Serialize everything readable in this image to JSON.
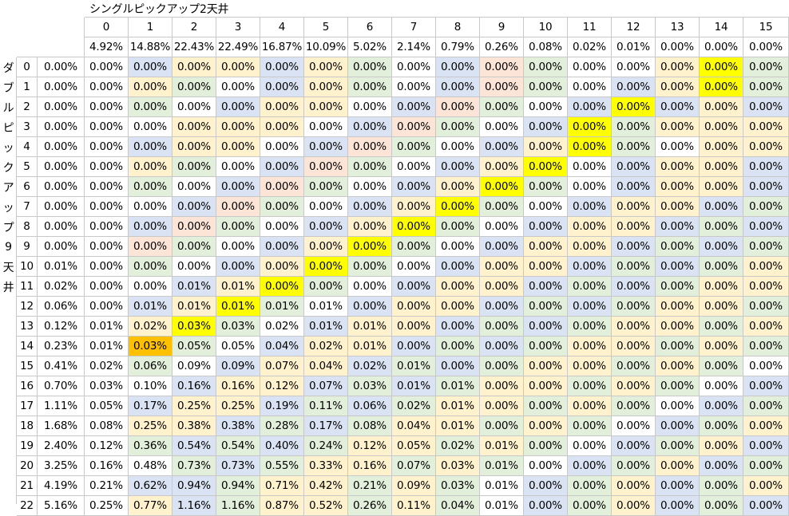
{
  "sheet": {
    "title": "シングルピックアップ2天井",
    "vertical_label": [
      "ダ",
      "ブ",
      "ル",
      "ピ",
      "ッ",
      "ク",
      "ア",
      "ッ",
      "プ",
      "9",
      "天",
      "井"
    ],
    "col_headers": [
      "0",
      "1",
      "2",
      "3",
      "4",
      "5",
      "6",
      "7",
      "8",
      "9",
      "10",
      "11",
      "12",
      "13",
      "14",
      "15"
    ],
    "col_probs": [
      "4.92%",
      "14.88%",
      "22.43%",
      "22.49%",
      "16.87%",
      "10.09%",
      "5.02%",
      "2.14%",
      "0.79%",
      "0.26%",
      "0.08%",
      "0.02%",
      "0.01%",
      "0.00%",
      "0.00%",
      "0.00%"
    ],
    "row_headers": [
      "0",
      "1",
      "2",
      "3",
      "4",
      "5",
      "6",
      "7",
      "8",
      "9",
      "10",
      "11",
      "12",
      "13",
      "14",
      "15",
      "16",
      "17",
      "18",
      "19",
      "20",
      "21",
      "22"
    ],
    "row_probs": [
      "0.00%",
      "0.00%",
      "0.00%",
      "0.00%",
      "0.00%",
      "0.00%",
      "0.00%",
      "0.00%",
      "0.00%",
      "0.00%",
      "0.01%",
      "0.02%",
      "0.06%",
      "0.12%",
      "0.23%",
      "0.41%",
      "0.70%",
      "1.11%",
      "1.68%",
      "2.40%",
      "3.25%",
      "4.19%",
      "5.16%"
    ],
    "values": [
      [
        "0.00%",
        "0.00%",
        "0.00%",
        "0.00%",
        "0.00%",
        "0.00%",
        "0.00%",
        "0.00%",
        "0.00%",
        "0.00%",
        "0.00%",
        "0.00%",
        "0.00%",
        "0.00%",
        "0.00%",
        "0.00%"
      ],
      [
        "0.00%",
        "0.00%",
        "0.00%",
        "0.00%",
        "0.00%",
        "0.00%",
        "0.00%",
        "0.00%",
        "0.00%",
        "0.00%",
        "0.00%",
        "0.00%",
        "0.00%",
        "0.00%",
        "0.00%",
        "0.00%"
      ],
      [
        "0.00%",
        "0.00%",
        "0.00%",
        "0.00%",
        "0.00%",
        "0.00%",
        "0.00%",
        "0.00%",
        "0.00%",
        "0.00%",
        "0.00%",
        "0.00%",
        "0.00%",
        "0.00%",
        "0.00%",
        "0.00%"
      ],
      [
        "0.00%",
        "0.00%",
        "0.00%",
        "0.00%",
        "0.00%",
        "0.00%",
        "0.00%",
        "0.00%",
        "0.00%",
        "0.00%",
        "0.00%",
        "0.00%",
        "0.00%",
        "0.00%",
        "0.00%",
        "0.00%"
      ],
      [
        "0.00%",
        "0.00%",
        "0.00%",
        "0.00%",
        "0.00%",
        "0.00%",
        "0.00%",
        "0.00%",
        "0.00%",
        "0.00%",
        "0.00%",
        "0.00%",
        "0.00%",
        "0.00%",
        "0.00%",
        "0.00%"
      ],
      [
        "0.00%",
        "0.00%",
        "0.00%",
        "0.00%",
        "0.00%",
        "0.00%",
        "0.00%",
        "0.00%",
        "0.00%",
        "0.00%",
        "0.00%",
        "0.00%",
        "0.00%",
        "0.00%",
        "0.00%",
        "0.00%"
      ],
      [
        "0.00%",
        "0.00%",
        "0.00%",
        "0.00%",
        "0.00%",
        "0.00%",
        "0.00%",
        "0.00%",
        "0.00%",
        "0.00%",
        "0.00%",
        "0.00%",
        "0.00%",
        "0.00%",
        "0.00%",
        "0.00%"
      ],
      [
        "0.00%",
        "0.00%",
        "0.00%",
        "0.00%",
        "0.00%",
        "0.00%",
        "0.00%",
        "0.00%",
        "0.00%",
        "0.00%",
        "0.00%",
        "0.00%",
        "0.00%",
        "0.00%",
        "0.00%",
        "0.00%"
      ],
      [
        "0.00%",
        "0.00%",
        "0.00%",
        "0.00%",
        "0.00%",
        "0.00%",
        "0.00%",
        "0.00%",
        "0.00%",
        "0.00%",
        "0.00%",
        "0.00%",
        "0.00%",
        "0.00%",
        "0.00%",
        "0.00%"
      ],
      [
        "0.00%",
        "0.00%",
        "0.00%",
        "0.00%",
        "0.00%",
        "0.00%",
        "0.00%",
        "0.00%",
        "0.00%",
        "0.00%",
        "0.00%",
        "0.00%",
        "0.00%",
        "0.00%",
        "0.00%",
        "0.00%"
      ],
      [
        "0.00%",
        "0.00%",
        "0.00%",
        "0.00%",
        "0.00%",
        "0.00%",
        "0.00%",
        "0.00%",
        "0.00%",
        "0.00%",
        "0.00%",
        "0.00%",
        "0.00%",
        "0.00%",
        "0.00%",
        "0.00%"
      ],
      [
        "0.00%",
        "0.00%",
        "0.01%",
        "0.01%",
        "0.00%",
        "0.00%",
        "0.00%",
        "0.00%",
        "0.00%",
        "0.00%",
        "0.00%",
        "0.00%",
        "0.00%",
        "0.00%",
        "0.00%",
        "0.00%"
      ],
      [
        "0.00%",
        "0.01%",
        "0.01%",
        "0.01%",
        "0.01%",
        "0.01%",
        "0.00%",
        "0.00%",
        "0.00%",
        "0.00%",
        "0.00%",
        "0.00%",
        "0.00%",
        "0.00%",
        "0.00%",
        "0.00%"
      ],
      [
        "0.01%",
        "0.02%",
        "0.03%",
        "0.03%",
        "0.02%",
        "0.01%",
        "0.01%",
        "0.00%",
        "0.00%",
        "0.00%",
        "0.00%",
        "0.00%",
        "0.00%",
        "0.00%",
        "0.00%",
        "0.00%"
      ],
      [
        "0.01%",
        "0.03%",
        "0.05%",
        "0.05%",
        "0.04%",
        "0.02%",
        "0.01%",
        "0.00%",
        "0.00%",
        "0.00%",
        "0.00%",
        "0.00%",
        "0.00%",
        "0.00%",
        "0.00%",
        "0.00%"
      ],
      [
        "0.02%",
        "0.06%",
        "0.09%",
        "0.09%",
        "0.07%",
        "0.04%",
        "0.02%",
        "0.01%",
        "0.00%",
        "0.00%",
        "0.00%",
        "0.00%",
        "0.00%",
        "0.00%",
        "0.00%",
        "0.00%"
      ],
      [
        "0.03%",
        "0.10%",
        "0.16%",
        "0.16%",
        "0.12%",
        "0.07%",
        "0.03%",
        "0.01%",
        "0.01%",
        "0.00%",
        "0.00%",
        "0.00%",
        "0.00%",
        "0.00%",
        "0.00%",
        "0.00%"
      ],
      [
        "0.05%",
        "0.17%",
        "0.25%",
        "0.25%",
        "0.19%",
        "0.11%",
        "0.06%",
        "0.02%",
        "0.01%",
        "0.00%",
        "0.00%",
        "0.00%",
        "0.00%",
        "0.00%",
        "0.00%",
        "0.00%"
      ],
      [
        "0.08%",
        "0.25%",
        "0.38%",
        "0.38%",
        "0.28%",
        "0.17%",
        "0.08%",
        "0.04%",
        "0.01%",
        "0.00%",
        "0.00%",
        "0.00%",
        "0.00%",
        "0.00%",
        "0.00%",
        "0.00%"
      ],
      [
        "0.12%",
        "0.36%",
        "0.54%",
        "0.54%",
        "0.40%",
        "0.24%",
        "0.12%",
        "0.05%",
        "0.02%",
        "0.01%",
        "0.00%",
        "0.00%",
        "0.00%",
        "0.00%",
        "0.00%",
        "0.00%"
      ],
      [
        "0.16%",
        "0.48%",
        "0.73%",
        "0.73%",
        "0.55%",
        "0.33%",
        "0.16%",
        "0.07%",
        "0.03%",
        "0.01%",
        "0.00%",
        "0.00%",
        "0.00%",
        "0.00%",
        "0.00%",
        "0.00%"
      ],
      [
        "0.21%",
        "0.62%",
        "0.94%",
        "0.94%",
        "0.71%",
        "0.42%",
        "0.21%",
        "0.09%",
        "0.03%",
        "0.01%",
        "0.00%",
        "0.00%",
        "0.00%",
        "0.00%",
        "0.00%",
        "0.00%"
      ],
      [
        "0.25%",
        "0.77%",
        "1.16%",
        "1.16%",
        "0.87%",
        "0.52%",
        "0.26%",
        "0.11%",
        "0.04%",
        "0.01%",
        "0.00%",
        "0.00%",
        "0.00%",
        "0.00%",
        "0.00%",
        "0.00%"
      ]
    ],
    "palette": {
      "w": "#ffffff",
      "b": "#dae3f3",
      "y": "#fff2cc",
      "g": "#e2efda",
      "p": "#fce4d6",
      "Y": "#ffff00",
      "O": "#ffc000"
    },
    "fills": [
      "wbyybygwbpgwwyYg",
      "wygwbygwbpgwbyYg",
      "wgwbyywbpgwbYbyb",
      "wwyyywbpgwbYgyyy",
      "wbyywbpgwbyYgwyy",
      "wygwbpgwbyYwbyyb",
      "wgwbpgwbyYgwbyyb",
      "wwbpgwbyYgwbyybg",
      "wbpgwbyYgwbyybgb",
      "wpgwbyYgwbyybgbg",
      "wgwbyYgwbyybgbgy",
      "wwbyYgwbyybgbgyy",
      "wbyYgwbyybgbgyyg",
      "wyYgwbyybgbgyygy",
      "wOgwbyybgbgyygyg",
      "wgwbyybgbgyygygw",
      "wwbyybgbgyygygwb",
      "wbyybgbgyygygwbg",
      "wyybgbgyygygwbgy",
      "wgbgbgyygygwbgyb",
      "wwgbgyygygwbgybg",
      "wbbgyygygwbgybgy",
      "wybgyygygwbgybgb"
    ]
  }
}
